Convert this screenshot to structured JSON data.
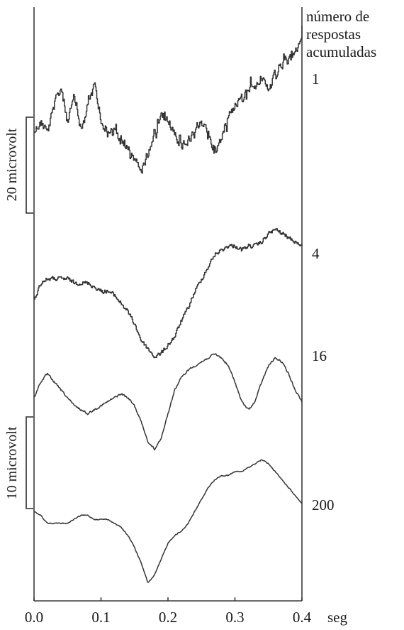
{
  "chart_data": {
    "type": "line",
    "legend_title": [
      "número de",
      "respostas",
      "acumuladas"
    ],
    "xlabel": "seg",
    "x_ticks": [
      "0.0",
      "0.1",
      "0.2",
      "0.3",
      "0.4"
    ],
    "xlim": [
      0,
      0.4
    ],
    "scale_bars": [
      {
        "label": "20 microvolt",
        "microvolt": 20
      },
      {
        "label": "10 microvolt",
        "microvolt": 10
      }
    ],
    "series": [
      {
        "name": "1",
        "noise": "high",
        "x": [
          0.0,
          0.01,
          0.02,
          0.03,
          0.04,
          0.05,
          0.06,
          0.07,
          0.08,
          0.09,
          0.1,
          0.11,
          0.12,
          0.13,
          0.14,
          0.15,
          0.16,
          0.17,
          0.18,
          0.19,
          0.2,
          0.21,
          0.22,
          0.23,
          0.24,
          0.25,
          0.26,
          0.27,
          0.28,
          0.29,
          0.3,
          0.31,
          0.32,
          0.33,
          0.34,
          0.35,
          0.36,
          0.37,
          0.38,
          0.39,
          0.4
        ],
        "values": [
          0,
          2,
          0,
          6,
          10,
          2,
          8,
          0,
          6,
          11,
          2,
          0,
          1,
          -3,
          -4,
          -6,
          -8,
          -5,
          -1,
          4,
          2,
          0,
          -3,
          -2,
          -1,
          2,
          0,
          -5,
          -1,
          4,
          6,
          8,
          10,
          11,
          12,
          9,
          13,
          15,
          16,
          18,
          22
        ]
      },
      {
        "name": "4",
        "noise": "medium",
        "x": [
          0.0,
          0.01,
          0.02,
          0.03,
          0.04,
          0.05,
          0.06,
          0.07,
          0.08,
          0.09,
          0.1,
          0.11,
          0.12,
          0.13,
          0.14,
          0.15,
          0.16,
          0.17,
          0.18,
          0.19,
          0.2,
          0.21,
          0.22,
          0.23,
          0.24,
          0.25,
          0.26,
          0.27,
          0.28,
          0.29,
          0.3,
          0.31,
          0.32,
          0.33,
          0.34,
          0.35,
          0.36,
          0.37,
          0.38,
          0.39,
          0.4
        ],
        "values": [
          -2,
          2,
          3,
          3,
          3,
          3,
          2,
          2,
          2,
          1,
          0,
          0,
          -1,
          -3,
          -5,
          -8,
          -12,
          -14,
          -16,
          -15,
          -13,
          -11,
          -7,
          -4,
          0,
          3,
          6,
          9,
          10,
          11,
          11,
          10,
          11,
          11,
          12,
          14,
          15,
          14,
          13,
          12,
          11
        ]
      },
      {
        "name": "16",
        "noise": "low",
        "x": [
          0.0,
          0.01,
          0.02,
          0.03,
          0.04,
          0.05,
          0.06,
          0.07,
          0.08,
          0.09,
          0.1,
          0.11,
          0.12,
          0.13,
          0.14,
          0.15,
          0.16,
          0.17,
          0.18,
          0.19,
          0.2,
          0.21,
          0.22,
          0.23,
          0.24,
          0.25,
          0.26,
          0.27,
          0.28,
          0.29,
          0.3,
          0.31,
          0.32,
          0.33,
          0.34,
          0.35,
          0.36,
          0.37,
          0.38,
          0.39,
          0.4
        ],
        "values": [
          0,
          4,
          6,
          4,
          2,
          0,
          -2,
          -3,
          -4,
          -3,
          -2,
          -1,
          0,
          1,
          0,
          -2,
          -6,
          -11,
          -13,
          -10,
          -4,
          2,
          5,
          7,
          8,
          9,
          10,
          11,
          10,
          8,
          4,
          -1,
          -3,
          -1,
          4,
          8,
          10,
          9,
          6,
          2,
          -1
        ]
      },
      {
        "name": "200",
        "noise": "very-low",
        "x": [
          0.0,
          0.01,
          0.02,
          0.03,
          0.04,
          0.05,
          0.06,
          0.07,
          0.08,
          0.09,
          0.1,
          0.11,
          0.12,
          0.13,
          0.14,
          0.15,
          0.16,
          0.17,
          0.18,
          0.19,
          0.2,
          0.21,
          0.22,
          0.23,
          0.24,
          0.25,
          0.26,
          0.27,
          0.28,
          0.29,
          0.3,
          0.31,
          0.32,
          0.33,
          0.34,
          0.35,
          0.36,
          0.37,
          0.38,
          0.39,
          0.4
        ],
        "values": [
          0,
          -1,
          -3,
          -3,
          -3,
          -3,
          -2,
          -1,
          -1,
          -2,
          -2,
          -2,
          -3,
          -4,
          -6,
          -9,
          -13,
          -18,
          -16,
          -12,
          -8,
          -6,
          -5,
          -3,
          0,
          3,
          6,
          8,
          9,
          9,
          10,
          10,
          11,
          12,
          13,
          12,
          10,
          8,
          6,
          4,
          2
        ]
      }
    ]
  }
}
